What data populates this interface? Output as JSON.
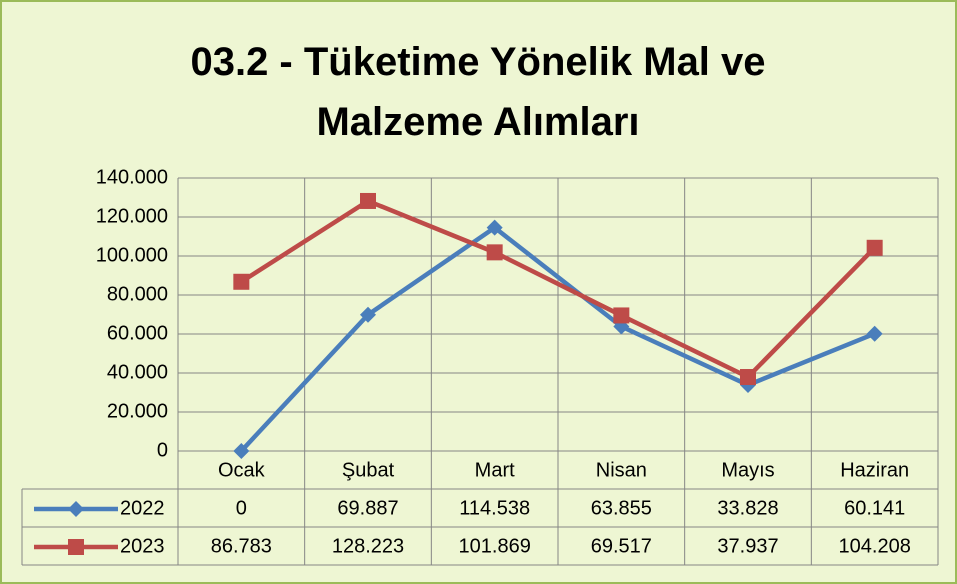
{
  "chart_data": {
    "type": "line",
    "title": "03.2 - Tüketime Yönelik Mal ve Malzeme Alımları",
    "categories": [
      "Ocak",
      "Şubat",
      "Mart",
      "Nisan",
      "Mayıs",
      "Haziran"
    ],
    "series": [
      {
        "name": "2022",
        "color": "#4a7ebb",
        "marker": "diamond",
        "values": [
          0,
          69887,
          114538,
          63855,
          33828,
          60141
        ],
        "value_labels": [
          "0",
          "69.887",
          "114.538",
          "63.855",
          "33.828",
          "60.141"
        ]
      },
      {
        "name": "2023",
        "color": "#be4b48",
        "marker": "square",
        "values": [
          86783,
          128223,
          101869,
          69517,
          37937,
          104208
        ],
        "value_labels": [
          "86.783",
          "128.223",
          "101.869",
          "69.517",
          "37.937",
          "104.208"
        ]
      }
    ],
    "ylim": [
      0,
      140000
    ],
    "yticks": [
      0,
      {
        "value": 20000,
        "label": "20.000"
      },
      {
        "value": 40000,
        "label": "40.000"
      },
      {
        "value": 60000,
        "label": "60.000"
      },
      {
        "value": 80000,
        "label": "80.000"
      },
      {
        "value": 100000,
        "label": "100.000"
      },
      {
        "value": 120000,
        "label": "120.000"
      },
      {
        "value": 140000,
        "label": "140.000"
      }
    ],
    "grid": true
  }
}
